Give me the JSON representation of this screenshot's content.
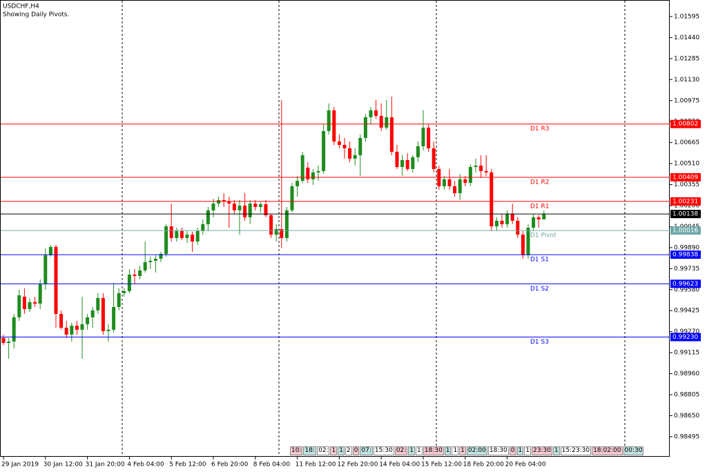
{
  "chart_data": {
    "type": "candlestick",
    "title": "USDCHF,H4",
    "subtitle": "Showing Daily Pivots.",
    "categories": [
      "29 Jan 2019",
      null,
      null,
      null,
      null,
      null,
      null,
      null,
      "30 Jan 12:00",
      null,
      null,
      null,
      null,
      null,
      null,
      null,
      "31 Jan 20:00",
      null,
      null,
      null,
      null,
      null,
      null,
      null,
      "4 Feb 04:00",
      null,
      null,
      null,
      null,
      null,
      null,
      null,
      "5 Feb 12:00",
      null,
      null,
      null,
      null,
      null,
      null,
      null,
      "6 Feb 20:00",
      null,
      null,
      null,
      null,
      null,
      null,
      null,
      "8 Feb 04:00",
      null,
      null,
      null,
      null,
      null,
      null,
      null,
      "11 Feb 12:00",
      null,
      null,
      null,
      null,
      null,
      null,
      null,
      "12 Feb 20:00",
      null,
      null,
      null,
      null,
      null,
      null,
      null,
      "14 Feb 04:00",
      null,
      null,
      null,
      null,
      null,
      null,
      null,
      "15 Feb 12:00",
      null,
      null,
      null,
      null,
      null,
      null,
      null,
      "18 Feb 20:00",
      null,
      null,
      null,
      null,
      null,
      null,
      null,
      "20 Feb 04:00",
      null,
      null,
      null,
      null,
      null,
      null,
      null
    ],
    "open": [
      0.99223,
      0.99187,
      0.99197,
      0.99376,
      0.99528,
      0.99437,
      0.99488,
      0.99477,
      0.9962,
      0.99834,
      0.99895,
      0.99401,
      0.99299,
      0.99248,
      0.99314,
      0.99284,
      0.99325,
      0.99376,
      0.99427,
      0.99518,
      0.99274,
      0.99284,
      0.99452,
      0.99554,
      0.99569,
      0.99691,
      0.99681,
      0.99722,
      0.99783,
      0.99793,
      0.99808,
      0.99844,
      1.00047,
      0.99961,
      1.00012,
      0.99961,
      0.99986,
      0.99935,
      1.00012,
      1.00063,
      1.00165,
      1.00215,
      1.00241,
      1.00231,
      1.00215,
      1.00165,
      1.002,
      1.00114,
      1.00215,
      1.0019,
      1.0021,
      1.00129,
      0.99986,
      1.00027,
      0.99961,
      1.00165,
      1.00343,
      1.00383,
      1.0048,
      1.00394,
      1.00445,
      1.00455,
      1.0075,
      1.00903,
      1.00673,
      1.00648,
      1.00623,
      1.00546,
      1.00572,
      1.00699,
      1.00852,
      1.00903,
      1.00862,
      1.00775,
      1.00852,
      1.00597,
      1.00485,
      1.00536,
      1.0047,
      1.00557,
      1.00638,
      1.00775,
      1.00623,
      1.0047,
      1.00343,
      1.00394,
      1.00343,
      1.00292,
      1.00394,
      1.00368,
      1.00485,
      1.00495,
      1.00455,
      1.00445,
      1.00047,
      1.00088,
      1.00063,
      1.00139,
      1.00088,
      0.99986,
      0.99834,
      1.00037,
      1.00114,
      1.00098
    ],
    "high": [
      0.99248,
      0.99223,
      0.99401,
      0.99579,
      0.99589,
      0.99518,
      0.99528,
      0.99656,
      0.99885,
      0.9991,
      0.9991,
      0.99427,
      0.9935,
      0.99335,
      0.9935,
      0.99528,
      0.99401,
      0.99452,
      0.99554,
      0.99554,
      0.99325,
      0.9963,
      0.99589,
      0.99589,
      0.99732,
      0.99732,
      0.99757,
      0.99935,
      0.99824,
      0.99834,
      0.99859,
      1.00063,
      1.00215,
      1.00037,
      1.00037,
      1.00012,
      1.00007,
      1.00037,
      1.00098,
      1.0019,
      1.00251,
      1.00266,
      1.00292,
      1.00266,
      1.00241,
      1.00241,
      1.00292,
      1.00241,
      1.00241,
      1.00226,
      1.00241,
      1.00139,
      1.00063,
      1.00979,
      1.0019,
      1.00368,
      1.00419,
      1.00597,
      1.00521,
      1.0047,
      1.00495,
      1.00801,
      1.00954,
      1.00928,
      1.00725,
      1.00699,
      1.00673,
      1.00623,
      1.00725,
      1.00877,
      1.00928,
      1.00979,
      1.00954,
      1.00979,
      1.01004,
      1.00648,
      1.00572,
      1.00587,
      1.00572,
      1.00673,
      1.00903,
      1.00801,
      1.00673,
      1.00495,
      1.00419,
      1.0047,
      1.00383,
      1.00434,
      1.00419,
      1.00506,
      1.00546,
      1.00572,
      1.00572,
      1.0047,
      1.00114,
      1.00139,
      1.00165,
      1.00215,
      1.00114,
      1.00012,
      1.00063,
      1.00139,
      1.00129,
      1.00165
    ],
    "low": [
      0.99172,
      0.9907,
      0.99146,
      0.9935,
      0.99401,
      0.99416,
      0.99452,
      0.99437,
      0.99579,
      0.99824,
      0.99299,
      0.99284,
      0.99223,
      0.99197,
      0.99248,
      0.9907,
      0.99284,
      0.99299,
      0.99401,
      0.99248,
      0.99197,
      0.99263,
      0.99427,
      0.99528,
      0.99554,
      0.9962,
      0.99656,
      0.99706,
      0.99732,
      0.99706,
      0.99783,
      0.99824,
      0.99935,
      0.99935,
      0.99946,
      0.99925,
      0.99859,
      0.9991,
      0.99986,
      1.00012,
      1.00114,
      1.0019,
      1.0019,
      1.00037,
      1.00139,
      0.99986,
      1.00088,
      1.00063,
      1.00165,
      1.00149,
      1.00114,
      0.99961,
      0.99935,
      0.99885,
      0.99935,
      1.00149,
      1.00266,
      1.00368,
      1.00368,
      1.00353,
      1.00383,
      1.00434,
      1.00725,
      1.00648,
      1.00623,
      1.00546,
      1.00521,
      1.00495,
      1.00419,
      1.00673,
      1.00801,
      1.00842,
      1.0075,
      1.0076,
      1.00572,
      1.0047,
      1.00419,
      1.00455,
      1.00445,
      1.00521,
      1.00607,
      1.00597,
      1.00445,
      1.00317,
      1.00317,
      1.00317,
      1.00266,
      1.00241,
      1.00343,
      1.00343,
      1.00445,
      1.00404,
      1.00419,
      1.00012,
      1.00012,
      1.00037,
      1.00037,
      1.00063,
      0.99961,
      0.99808,
      0.99808,
      1.00012,
      1.00037,
      1.00098
    ],
    "close": [
      0.99187,
      0.99197,
      0.99376,
      0.99538,
      0.99437,
      0.99488,
      0.99477,
      0.9962,
      0.99834,
      0.99895,
      0.99401,
      0.99299,
      0.99248,
      0.99314,
      0.99284,
      0.99325,
      0.99376,
      0.99427,
      0.99518,
      0.99274,
      0.99284,
      0.99452,
      0.99554,
      0.99569,
      0.99691,
      0.99681,
      0.99722,
      0.99783,
      0.99793,
      0.99808,
      0.99844,
      1.00047,
      0.99961,
      1.00012,
      0.99961,
      0.99986,
      0.99935,
      1.00012,
      1.00063,
      1.00165,
      1.00215,
      1.00241,
      1.00231,
      1.00215,
      1.00165,
      1.002,
      1.00114,
      1.00215,
      1.0019,
      1.0021,
      1.00129,
      0.99986,
      1.00027,
      0.99961,
      1.00165,
      1.00343,
      1.00383,
      1.00572,
      1.00394,
      1.00445,
      1.00455,
      1.0075,
      1.00903,
      1.00673,
      1.00648,
      1.00623,
      1.00546,
      1.00572,
      1.00699,
      1.00852,
      1.00903,
      1.00862,
      1.00775,
      1.00852,
      1.00597,
      1.00485,
      1.00536,
      1.0047,
      1.00557,
      1.00638,
      1.00775,
      1.00623,
      1.0047,
      1.00343,
      1.00394,
      1.00343,
      1.00292,
      1.00394,
      1.00368,
      1.00485,
      1.00495,
      1.00455,
      1.00445,
      1.00047,
      1.00088,
      1.00063,
      1.00139,
      1.00088,
      0.99986,
      0.99834,
      1.00037,
      1.00114,
      1.00098,
      1.00138
    ],
    "up_color": "#1e8c1e",
    "down_color": "#ff0000",
    "ylim": [
      0.98347,
      1.01717
    ],
    "yticks": [
      {
        "value": 1.01595,
        "label": "1.01595"
      },
      {
        "value": 1.0144,
        "label": "1.01440"
      },
      {
        "value": 1.01285,
        "label": "1.01285"
      },
      {
        "value": 1.0113,
        "label": "1.01130"
      },
      {
        "value": 1.00975,
        "label": "1.00975"
      },
      {
        "value": 1.0082,
        "label": "1.00820"
      },
      {
        "value": 1.00665,
        "label": "1.00665"
      },
      {
        "value": 1.0051,
        "label": "1.00510"
      },
      {
        "value": 1.00355,
        "label": "1.00355"
      },
      {
        "value": 1.002,
        "label": "1.00200"
      },
      {
        "value": 1.00045,
        "label": "1.00045"
      },
      {
        "value": 0.9989,
        "label": "0.99890"
      },
      {
        "value": 0.99735,
        "label": "0.99735"
      },
      {
        "value": 0.9958,
        "label": "0.99580"
      },
      {
        "value": 0.99425,
        "label": "0.99425"
      },
      {
        "value": 0.9927,
        "label": "0.99270"
      },
      {
        "value": 0.99115,
        "label": "0.99115"
      },
      {
        "value": 0.9896,
        "label": "0.98960"
      },
      {
        "value": 0.98805,
        "label": "0.98805"
      },
      {
        "value": 0.9865,
        "label": "0.98650"
      },
      {
        "value": 0.98495,
        "label": "0.98495"
      }
    ],
    "levels": {
      "names": [
        "D1 R3",
        "D1 R2",
        "D1 R1",
        null,
        "D1 Pivot",
        "D1 S1",
        "D1 S2",
        "D1 S3"
      ],
      "values": [
        1.00802,
        1.00409,
        1.00231,
        1.00138,
        1.00016,
        0.99838,
        0.99623,
        0.9923
      ],
      "value_labels": [
        "1.00802",
        "1.00409",
        "1.00231",
        "1.00138",
        "1.00016",
        "0.99838",
        "0.99623",
        "0.99230"
      ],
      "colors": [
        "#ff0000",
        "#ff0000",
        "#ff0000",
        "#000000",
        "#6fa8a8",
        "#0000ff",
        "#0000ff",
        "#0000ff"
      ]
    },
    "time_markers": [
      "10:",
      "18:",
      "02:",
      "1",
      "1",
      "2",
      "0",
      "07:",
      "15:30",
      "02:",
      "1",
      "1",
      "18:30",
      "1",
      "1",
      "1",
      "02:00",
      "18:30",
      "0",
      "1",
      "1",
      "23:30",
      "1",
      "15:23:30",
      "18:02:00",
      "00:30"
    ]
  }
}
